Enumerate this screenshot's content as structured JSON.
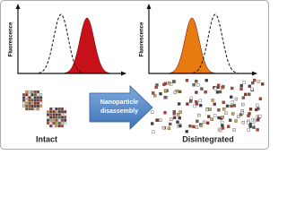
{
  "panels": [
    {
      "y_label": "Fluorescence"
    },
    {
      "y_label": "Fluorescence"
    }
  ],
  "arrow": {
    "label_lines": [
      "Nanoparticle",
      "disassembly"
    ]
  },
  "labels": {
    "intact": "Intact",
    "disintegrated": "Disintegrated"
  }
}
